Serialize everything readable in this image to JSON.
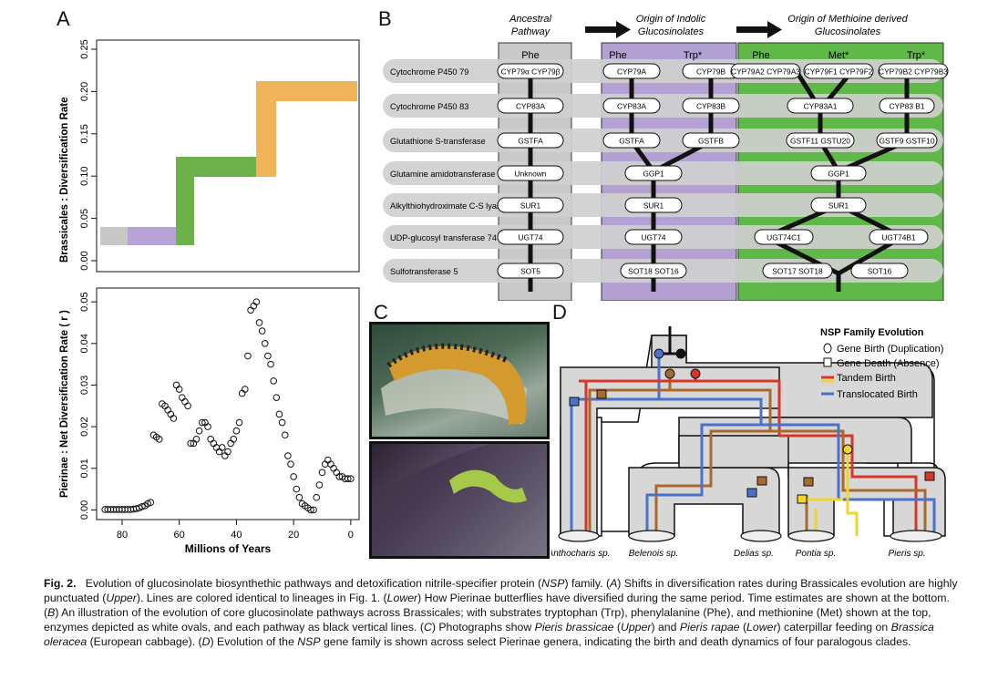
{
  "panels": {
    "a": "A",
    "b": "B",
    "c": "C",
    "d": "D"
  },
  "panel_a": {
    "upper": {
      "ylabel": "Brassicales : Diversification Rate",
      "yticks": [
        "0.00",
        "0.05",
        "0.10",
        "0.15",
        "0.20",
        "0.25"
      ],
      "ylim": [
        0,
        0.25
      ],
      "steps": [
        {
          "color": "#c8c8c8",
          "y": 0.03
        },
        {
          "color": "#b9a3d6",
          "y": 0.03
        },
        {
          "color": "#6cb14a",
          "y": 0.11
        },
        {
          "color": "#f2b45a",
          "y": 0.2
        }
      ]
    },
    "lower": {
      "ylabel": "Pierinae : Net Diversification Rate ( r )",
      "yticks": [
        "0.00",
        "0.01",
        "0.02",
        "0.03",
        "0.04",
        "0.05"
      ],
      "xticks": [
        "80",
        "60",
        "40",
        "20",
        "0"
      ],
      "xlabel": "Millions of Years"
    }
  },
  "chart_data": {
    "type": "scatter",
    "xlabel": "Millions of Years",
    "ylabel": "Pierinae : Net Diversification Rate ( r )",
    "xlim": [
      87,
      -1
    ],
    "ylim": [
      -0.001,
      0.052
    ],
    "x": [
      86,
      85,
      84,
      83,
      82,
      81,
      80,
      79,
      78,
      77,
      76,
      75,
      74,
      73,
      72,
      71,
      70,
      69,
      68,
      67,
      66,
      65,
      64,
      63,
      62,
      61,
      60,
      59,
      58,
      57,
      56,
      55,
      54,
      53,
      52,
      51,
      50,
      49,
      48,
      47,
      46,
      45,
      44,
      43,
      42,
      41,
      40,
      39,
      38,
      37,
      36,
      35,
      34,
      33,
      32,
      31,
      30,
      29,
      28,
      27,
      26,
      25,
      24,
      23,
      22,
      21,
      20,
      19,
      18,
      17,
      16,
      15,
      14,
      13,
      12,
      11,
      10,
      9,
      8,
      7,
      6,
      5,
      4,
      3,
      2,
      1,
      0
    ],
    "y": [
      0.0001,
      0.0001,
      0.0001,
      0.0001,
      0.0001,
      0.0001,
      0.0001,
      0.0001,
      0.0001,
      0.0001,
      0.0002,
      0.0003,
      0.0005,
      0.0008,
      0.001,
      0.0015,
      0.0018,
      0.018,
      0.0175,
      0.017,
      0.0255,
      0.025,
      0.024,
      0.023,
      0.022,
      0.03,
      0.029,
      0.027,
      0.026,
      0.025,
      0.016,
      0.016,
      0.017,
      0.019,
      0.021,
      0.021,
      0.02,
      0.017,
      0.016,
      0.015,
      0.014,
      0.015,
      0.013,
      0.014,
      0.016,
      0.017,
      0.019,
      0.021,
      0.028,
      0.029,
      0.037,
      0.048,
      0.049,
      0.05,
      0.045,
      0.043,
      0.04,
      0.037,
      0.035,
      0.031,
      0.027,
      0.023,
      0.021,
      0.018,
      0.013,
      0.011,
      0.008,
      0.005,
      0.003,
      0.0015,
      0.001,
      0.0005,
      0.0,
      0.0,
      0.003,
      0.006,
      0.009,
      0.011,
      0.012,
      0.011,
      0.01,
      0.009,
      0.008,
      0.008,
      0.0075,
      0.0075,
      0.0075
    ]
  },
  "panel_b": {
    "headers": [
      "Ancestral Pathway",
      "Origin of Indolic Glucosinolates",
      "Origin of Methioine derived Glucosinolates"
    ],
    "columns": {
      "ancestral": [
        "Phe"
      ],
      "indolic": [
        "Phe",
        "Trp*"
      ],
      "methionine": [
        "Phe",
        "Met*",
        "Trp*"
      ]
    },
    "rows": [
      "Cytochrome P450 79",
      "Cytochrome P450 83",
      "Glutathione S-transferase",
      "Glutamine amidotransferase",
      "Alkylthiohydroximate C-S lyase",
      "UDP-glucosyl transferase 74",
      "Sulfotransferase 5"
    ],
    "enzymes_ancestral": [
      "CYP79α CYP79β",
      "CYP83A",
      "GSTFA",
      "Unknown",
      "SUR1",
      "UGT74",
      "SOT5"
    ],
    "enzymes_indolic": {
      "r0": [
        "CYP79A",
        "CYP79B"
      ],
      "r1": [
        "CYP83A",
        "CYP83B"
      ],
      "r2": [
        "GSTFA",
        "GSTFB"
      ],
      "r3": [
        "GGP1"
      ],
      "r4": [
        "SUR1"
      ],
      "r5": [
        "UGT74"
      ],
      "r6": [
        "SOT18 SOT16"
      ]
    },
    "enzymes_methionine": {
      "r0": [
        "CYP79A2 CYP79A3",
        "CYP79F1 CYP79F2",
        "CYP79B2 CYP79B3"
      ],
      "r1": [
        "CYP83A1",
        "CYP83 B1"
      ],
      "r2": [
        "GSTF11 GSTU20",
        "GSTF9 GSTF10"
      ],
      "r3": [
        "GGP1"
      ],
      "r4": [
        "SUR1"
      ],
      "r5": [
        "UGT74C1",
        "UGT74B1"
      ],
      "r6": [
        "SOT17 SOT18",
        "SOT16"
      ]
    }
  },
  "panel_d": {
    "legend_title": "NSP Family Evolution",
    "legend": [
      "Gene Birth (Duplication)",
      "Gene Death (Absence)",
      "Tandem Birth",
      "Translocated Birth"
    ],
    "taxa": [
      "Anthocharis sp.",
      "Belenois sp.",
      "Delias sp.",
      "Pontia sp.",
      "Pieris sp."
    ]
  },
  "caption": {
    "fig": "Fig. 2.",
    "p1": "Evolution of glucosinolate biosynthethic pathways and detoxification nitrile-specifier protein (",
    "nsp1": "NSP",
    "p2": ") family. (",
    "a": "A",
    "p3": ") Shifts in diversification rates during Brassicales evolution are highly punctuated (",
    "upper1": "Upper",
    "p4": "). Lines are colored identical to lineages in Fig. 1. (",
    "lower1": "Lower",
    "p5": ") How Pierinae butterflies have diversified during the same period. Time estimates are shown at the bottom. (",
    "b": "B",
    "p6": ") An illustration of the evolution of core glucosinolate pathways across Brassicales; with substrates tryptophan (Trp), phenylalanine (Phe), and methionine (Met) shown at the top, enzymes depicted as white ovals, and each pathway as black vertical lines. (",
    "c": "C",
    "p7": ") Photographs show ",
    "sp1": "Pieris brassicae",
    "p8": " (",
    "upper2": "Upper",
    "p9": ") and ",
    "sp2": "Pieris rapae",
    "p10": " (",
    "lower2": "Lower",
    "p11": ") caterpillar feeding on ",
    "sp3": "Brassica oleracea",
    "p12": " (European cabbage). (",
    "d": "D",
    "p13": ") Evolution of the ",
    "nsp2": "NSP",
    "p14": " gene family is shown across select Pierinae genera, indicating the birth and death dynamics of four paralogous clades."
  }
}
